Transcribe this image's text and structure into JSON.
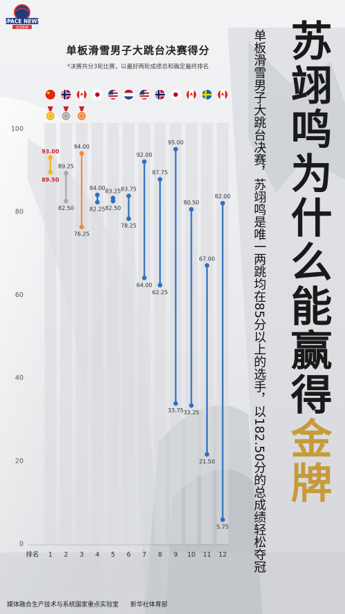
{
  "header": {
    "logo_text": "SPACE NEWS",
    "logo_subtext": "太空新闻",
    "title": "单板滑雪男子大跳台决赛得分",
    "subtitle": "*决赛共分3轮比赛，以最好两轮成绩总和确定最终排名"
  },
  "side": {
    "subtitle": "单板滑雪男子大跳台决赛，苏翊鸣是唯一两跳均在85分以上的选手，以182.50分的总成绩轻松夺冠",
    "title_main": "苏翊鸣为什么能赢得",
    "title_gold": "金牌"
  },
  "footer": {
    "left": "媒体融合生产技术与系统国家重点实验室",
    "right": "新华社体育部"
  },
  "colors": {
    "gold": "#f3b41b",
    "silver": "#a9a9a9",
    "bronze": "#f08a3c",
    "blue": "#2e6fc0",
    "highlight_red": "#c8262f"
  },
  "flags": [
    "china",
    "norway",
    "canada",
    "japan",
    "usa",
    "netherlands",
    "usa",
    "norway",
    "japan",
    "canada",
    "sweden",
    "canada"
  ],
  "medals": [
    "gold-medal",
    "silver-medal",
    "bronze-medal"
  ],
  "chart_data": {
    "type": "range",
    "x_label": "排名",
    "categories": [
      "1",
      "2",
      "3",
      "4",
      "5",
      "6",
      "7",
      "8",
      "9",
      "10",
      "11",
      "12"
    ],
    "ylim": [
      0,
      100
    ],
    "yticks": [
      0,
      20,
      40,
      60,
      80,
      100
    ],
    "grid": false,
    "highs": [
      93.0,
      89.25,
      94.0,
      84.0,
      83.25,
      83.75,
      92.0,
      87.75,
      95.0,
      80.5,
      67.0,
      82.0
    ],
    "lows": [
      89.5,
      82.5,
      76.25,
      82.25,
      82.5,
      78.25,
      64.0,
      62.25,
      33.75,
      33.25,
      21.5,
      5.75
    ],
    "high_labels": [
      "93.00",
      "89.25",
      "94.00",
      "84.00",
      "83.25",
      "83.75",
      "92.00",
      "87.75",
      "95.00",
      "80.50",
      "67.00",
      "82.00"
    ],
    "low_labels": [
      "89.50",
      "82.50",
      "76.25",
      "82.25",
      "82.50",
      "78.25",
      "64.00",
      "62.25",
      "33.75",
      "33.25",
      "21.50",
      "5.75"
    ]
  }
}
